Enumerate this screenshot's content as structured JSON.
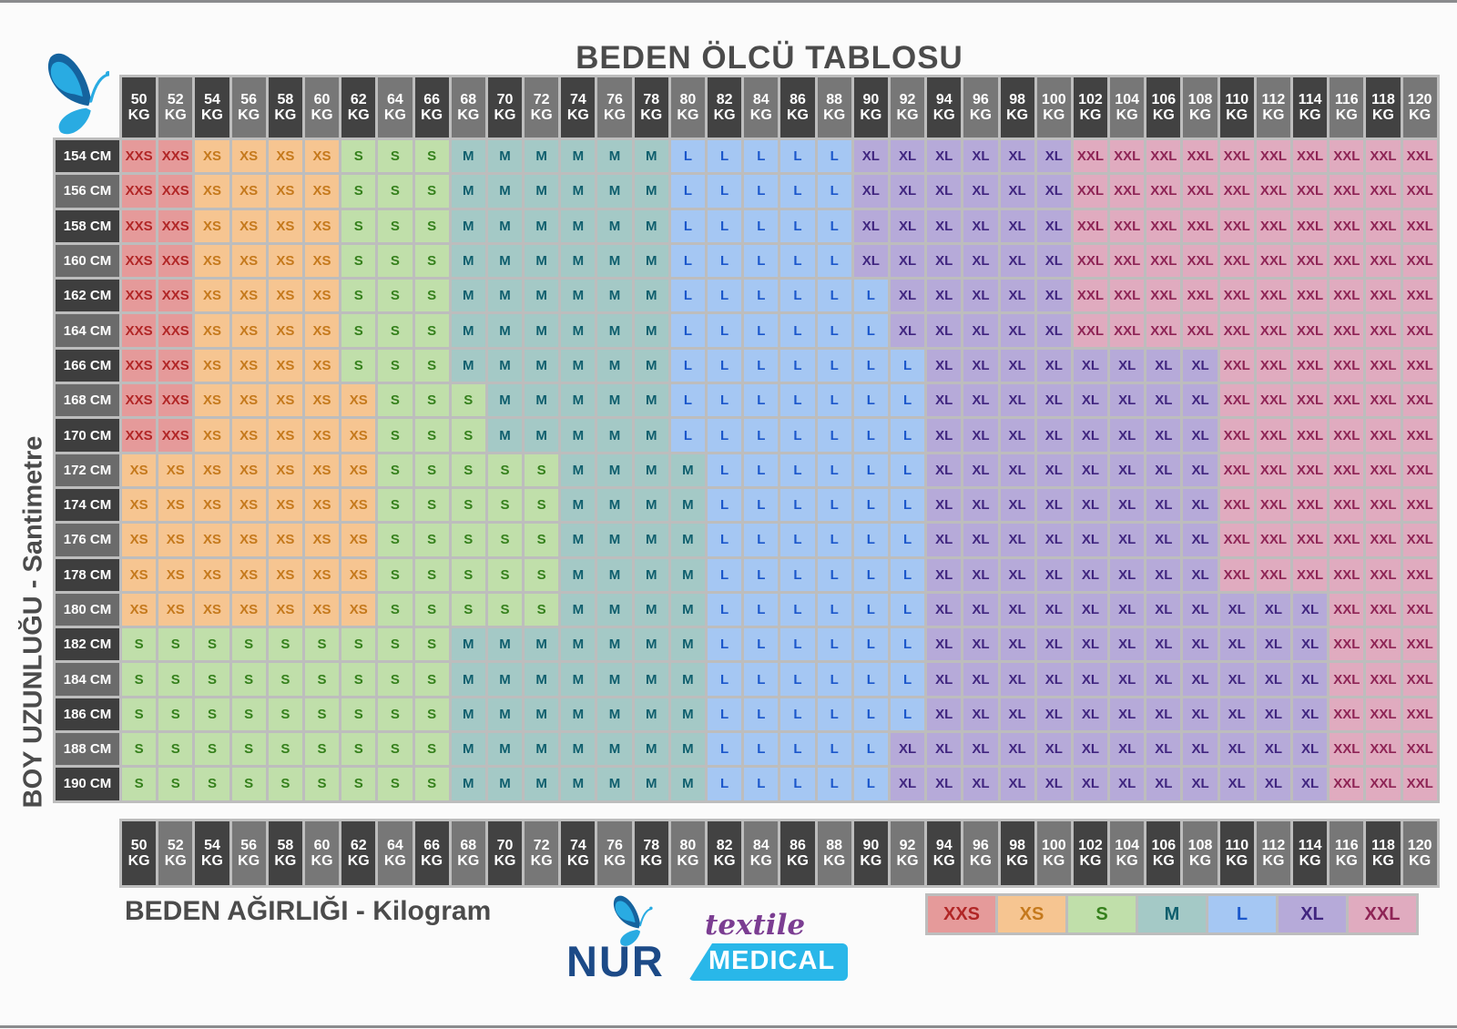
{
  "title": "BEDEN ÖLCÜ TABLOSU",
  "y_axis_label": "BOY UZUNLUĞU - Santimetre",
  "x_axis_label": "BEDEN AĞIRLIĞI - Kilogram",
  "weight_unit": "KG",
  "logo": {
    "brand": "NUR",
    "tagline1": "textile",
    "tagline2": "MEDICAL",
    "navy": "#1c4a87",
    "cyan": "#29b7e9",
    "purple": "#7b3d92",
    "butterfly_dark": "#15639e",
    "butterfly_light": "#29abe2"
  },
  "header_colors": {
    "dark": "#424242",
    "light": "#777777",
    "text": "#ffffff"
  },
  "row_label_colors": {
    "dark": "#3e3e3e",
    "light": "#6b6b6b",
    "text": "#ffffff"
  },
  "size_colors": {
    "XXS": {
      "bg": "#e59a9a",
      "fg": "#b12626"
    },
    "XS": {
      "bg": "#f6c591",
      "fg": "#c5791c"
    },
    "S": {
      "bg": "#c0dfaa",
      "fg": "#35801c"
    },
    "M": {
      "bg": "#a4c9c6",
      "fg": "#0e5e6d"
    },
    "L": {
      "bg": "#a5c7f3",
      "fg": "#1b57cb"
    },
    "XL": {
      "bg": "#b6aad9",
      "fg": "#40257f"
    },
    "XXL": {
      "bg": "#e0abbf",
      "fg": "#8e2455"
    }
  },
  "chart_data": {
    "type": "heatmap",
    "x_categories": [
      50,
      52,
      54,
      56,
      58,
      60,
      62,
      64,
      66,
      68,
      70,
      72,
      74,
      76,
      78,
      80,
      82,
      84,
      86,
      88,
      90,
      92,
      94,
      96,
      98,
      100,
      102,
      104,
      106,
      108,
      110,
      112,
      114,
      116,
      118,
      120
    ],
    "y_categories": [
      "154 CM",
      "156 CM",
      "158 CM",
      "160 CM",
      "162 CM",
      "164 CM",
      "166 CM",
      "168 CM",
      "170 CM",
      "172 CM",
      "174 CM",
      "176 CM",
      "178 CM",
      "180 CM",
      "182 CM",
      "184 CM",
      "186 CM",
      "188 CM",
      "190 CM"
    ],
    "legend": [
      "XXS",
      "XS",
      "S",
      "M",
      "L",
      "XL",
      "XXL"
    ],
    "legend_position": "bottom-right",
    "rows": [
      [
        "XXS",
        "XXS",
        "XS",
        "XS",
        "XS",
        "XS",
        "S",
        "S",
        "S",
        "M",
        "M",
        "M",
        "M",
        "M",
        "M",
        "L",
        "L",
        "L",
        "L",
        "L",
        "XL",
        "XL",
        "XL",
        "XL",
        "XL",
        "XL",
        "XXL",
        "XXL",
        "XXL",
        "XXL",
        "XXL",
        "XXL",
        "XXL",
        "XXL",
        "XXL",
        "XXL"
      ],
      [
        "XXS",
        "XXS",
        "XS",
        "XS",
        "XS",
        "XS",
        "S",
        "S",
        "S",
        "M",
        "M",
        "M",
        "M",
        "M",
        "M",
        "L",
        "L",
        "L",
        "L",
        "L",
        "XL",
        "XL",
        "XL",
        "XL",
        "XL",
        "XL",
        "XXL",
        "XXL",
        "XXL",
        "XXL",
        "XXL",
        "XXL",
        "XXL",
        "XXL",
        "XXL",
        "XXL"
      ],
      [
        "XXS",
        "XXS",
        "XS",
        "XS",
        "XS",
        "XS",
        "S",
        "S",
        "S",
        "M",
        "M",
        "M",
        "M",
        "M",
        "M",
        "L",
        "L",
        "L",
        "L",
        "L",
        "XL",
        "XL",
        "XL",
        "XL",
        "XL",
        "XL",
        "XXL",
        "XXL",
        "XXL",
        "XXL",
        "XXL",
        "XXL",
        "XXL",
        "XXL",
        "XXL",
        "XXL"
      ],
      [
        "XXS",
        "XXS",
        "XS",
        "XS",
        "XS",
        "XS",
        "S",
        "S",
        "S",
        "M",
        "M",
        "M",
        "M",
        "M",
        "M",
        "L",
        "L",
        "L",
        "L",
        "L",
        "XL",
        "XL",
        "XL",
        "XL",
        "XL",
        "XL",
        "XXL",
        "XXL",
        "XXL",
        "XXL",
        "XXL",
        "XXL",
        "XXL",
        "XXL",
        "XXL",
        "XXL"
      ],
      [
        "XXS",
        "XXS",
        "XS",
        "XS",
        "XS",
        "XS",
        "S",
        "S",
        "S",
        "M",
        "M",
        "M",
        "M",
        "M",
        "M",
        "L",
        "L",
        "L",
        "L",
        "L",
        "L",
        "XL",
        "XL",
        "XL",
        "XL",
        "XL",
        "XXL",
        "XXL",
        "XXL",
        "XXL",
        "XXL",
        "XXL",
        "XXL",
        "XXL",
        "XXL",
        "XXL"
      ],
      [
        "XXS",
        "XXS",
        "XS",
        "XS",
        "XS",
        "XS",
        "S",
        "S",
        "S",
        "M",
        "M",
        "M",
        "M",
        "M",
        "M",
        "L",
        "L",
        "L",
        "L",
        "L",
        "L",
        "XL",
        "XL",
        "XL",
        "XL",
        "XL",
        "XXL",
        "XXL",
        "XXL",
        "XXL",
        "XXL",
        "XXL",
        "XXL",
        "XXL",
        "XXL",
        "XXL"
      ],
      [
        "XXS",
        "XXS",
        "XS",
        "XS",
        "XS",
        "XS",
        "S",
        "S",
        "S",
        "M",
        "M",
        "M",
        "M",
        "M",
        "M",
        "L",
        "L",
        "L",
        "L",
        "L",
        "L",
        "L",
        "XL",
        "XL",
        "XL",
        "XL",
        "XL",
        "XL",
        "XL",
        "XL",
        "XXL",
        "XXL",
        "XXL",
        "XXL",
        "XXL",
        "XXL"
      ],
      [
        "XXS",
        "XXS",
        "XS",
        "XS",
        "XS",
        "XS",
        "XS",
        "S",
        "S",
        "S",
        "M",
        "M",
        "M",
        "M",
        "M",
        "L",
        "L",
        "L",
        "L",
        "L",
        "L",
        "L",
        "XL",
        "XL",
        "XL",
        "XL",
        "XL",
        "XL",
        "XL",
        "XL",
        "XXL",
        "XXL",
        "XXL",
        "XXL",
        "XXL",
        "XXL"
      ],
      [
        "XXS",
        "XXS",
        "XS",
        "XS",
        "XS",
        "XS",
        "XS",
        "S",
        "S",
        "S",
        "M",
        "M",
        "M",
        "M",
        "M",
        "L",
        "L",
        "L",
        "L",
        "L",
        "L",
        "L",
        "XL",
        "XL",
        "XL",
        "XL",
        "XL",
        "XL",
        "XL",
        "XL",
        "XXL",
        "XXL",
        "XXL",
        "XXL",
        "XXL",
        "XXL"
      ],
      [
        "XS",
        "XS",
        "XS",
        "XS",
        "XS",
        "XS",
        "XS",
        "S",
        "S",
        "S",
        "S",
        "S",
        "M",
        "M",
        "M",
        "M",
        "L",
        "L",
        "L",
        "L",
        "L",
        "L",
        "XL",
        "XL",
        "XL",
        "XL",
        "XL",
        "XL",
        "XL",
        "XL",
        "XXL",
        "XXL",
        "XXL",
        "XXL",
        "XXL",
        "XXL"
      ],
      [
        "XS",
        "XS",
        "XS",
        "XS",
        "XS",
        "XS",
        "XS",
        "S",
        "S",
        "S",
        "S",
        "S",
        "M",
        "M",
        "M",
        "M",
        "L",
        "L",
        "L",
        "L",
        "L",
        "L",
        "XL",
        "XL",
        "XL",
        "XL",
        "XL",
        "XL",
        "XL",
        "XL",
        "XXL",
        "XXL",
        "XXL",
        "XXL",
        "XXL",
        "XXL"
      ],
      [
        "XS",
        "XS",
        "XS",
        "XS",
        "XS",
        "XS",
        "XS",
        "S",
        "S",
        "S",
        "S",
        "S",
        "M",
        "M",
        "M",
        "M",
        "L",
        "L",
        "L",
        "L",
        "L",
        "L",
        "XL",
        "XL",
        "XL",
        "XL",
        "XL",
        "XL",
        "XL",
        "XL",
        "XXL",
        "XXL",
        "XXL",
        "XXL",
        "XXL",
        "XXL"
      ],
      [
        "XS",
        "XS",
        "XS",
        "XS",
        "XS",
        "XS",
        "XS",
        "S",
        "S",
        "S",
        "S",
        "S",
        "M",
        "M",
        "M",
        "M",
        "L",
        "L",
        "L",
        "L",
        "L",
        "L",
        "XL",
        "XL",
        "XL",
        "XL",
        "XL",
        "XL",
        "XL",
        "XL",
        "XXL",
        "XXL",
        "XXL",
        "XXL",
        "XXL",
        "XXL"
      ],
      [
        "XS",
        "XS",
        "XS",
        "XS",
        "XS",
        "XS",
        "XS",
        "S",
        "S",
        "S",
        "S",
        "S",
        "M",
        "M",
        "M",
        "M",
        "L",
        "L",
        "L",
        "L",
        "L",
        "L",
        "XL",
        "XL",
        "XL",
        "XL",
        "XL",
        "XL",
        "XL",
        "XL",
        "XL",
        "XL",
        "XL",
        "XXL",
        "XXL",
        "XXL"
      ],
      [
        "S",
        "S",
        "S",
        "S",
        "S",
        "S",
        "S",
        "S",
        "S",
        "M",
        "M",
        "M",
        "M",
        "M",
        "M",
        "M",
        "L",
        "L",
        "L",
        "L",
        "L",
        "L",
        "XL",
        "XL",
        "XL",
        "XL",
        "XL",
        "XL",
        "XL",
        "XL",
        "XL",
        "XL",
        "XL",
        "XXL",
        "XXL",
        "XXL"
      ],
      [
        "S",
        "S",
        "S",
        "S",
        "S",
        "S",
        "S",
        "S",
        "S",
        "M",
        "M",
        "M",
        "M",
        "M",
        "M",
        "M",
        "L",
        "L",
        "L",
        "L",
        "L",
        "L",
        "XL",
        "XL",
        "XL",
        "XL",
        "XL",
        "XL",
        "XL",
        "XL",
        "XL",
        "XL",
        "XL",
        "XXL",
        "XXL",
        "XXL"
      ],
      [
        "S",
        "S",
        "S",
        "S",
        "S",
        "S",
        "S",
        "S",
        "S",
        "M",
        "M",
        "M",
        "M",
        "M",
        "M",
        "M",
        "L",
        "L",
        "L",
        "L",
        "L",
        "L",
        "XL",
        "XL",
        "XL",
        "XL",
        "XL",
        "XL",
        "XL",
        "XL",
        "XL",
        "XL",
        "XL",
        "XXL",
        "XXL",
        "XXL"
      ],
      [
        "S",
        "S",
        "S",
        "S",
        "S",
        "S",
        "S",
        "S",
        "S",
        "M",
        "M",
        "M",
        "M",
        "M",
        "M",
        "M",
        "L",
        "L",
        "L",
        "L",
        "L",
        "XL",
        "XL",
        "XL",
        "XL",
        "XL",
        "XL",
        "XL",
        "XL",
        "XL",
        "XL",
        "XL",
        "XL",
        "XXL",
        "XXL",
        "XXL"
      ],
      [
        "S",
        "S",
        "S",
        "S",
        "S",
        "S",
        "S",
        "S",
        "S",
        "M",
        "M",
        "M",
        "M",
        "M",
        "M",
        "M",
        "L",
        "L",
        "L",
        "L",
        "L",
        "XL",
        "XL",
        "XL",
        "XL",
        "XL",
        "XL",
        "XL",
        "XL",
        "XL",
        "XL",
        "XL",
        "XL",
        "XXL",
        "XXL",
        "XXL"
      ]
    ]
  }
}
